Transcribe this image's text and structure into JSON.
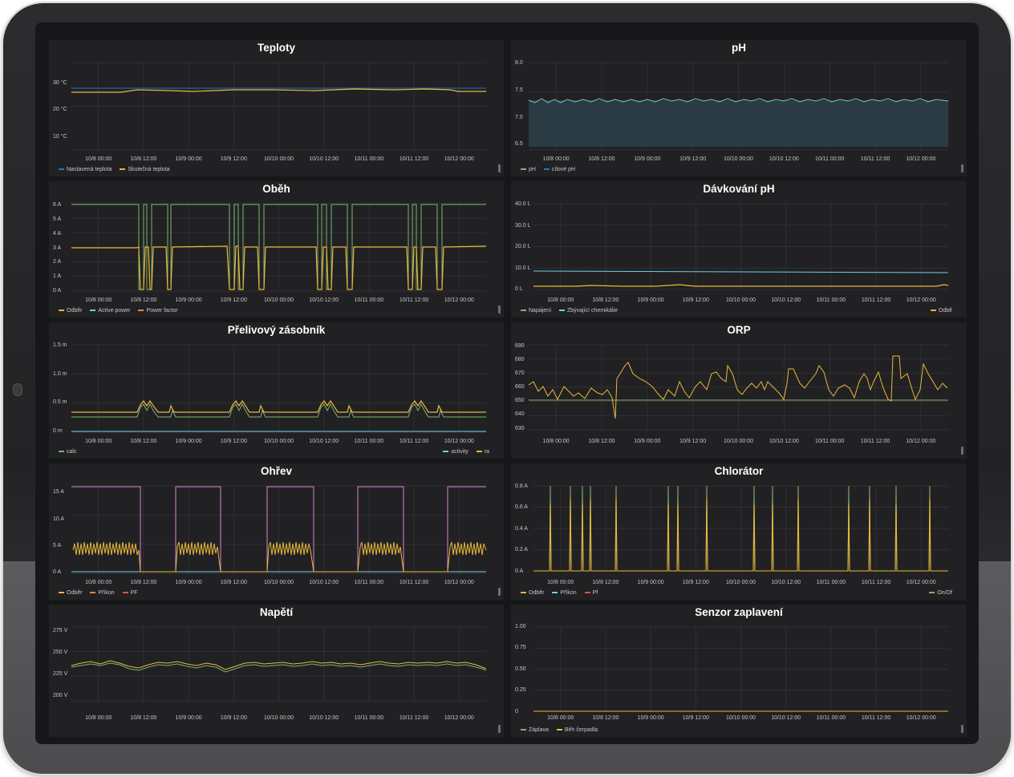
{
  "theme": {
    "grid": "#37373a",
    "line_green": "#7eb26d",
    "line_yellow": "#eab839",
    "line_blue": "#1f78c1",
    "line_cyan": "#6ed0e0",
    "line_pink": "#d683ce",
    "line_orange": "#ef843c",
    "line_red": "#e24d42",
    "line_teal": "#70c5c5"
  },
  "x_ticks": [
    "10/8 00:00",
    "10/8 12:00",
    "10/9 00:00",
    "10/9 12:00",
    "10/10 00:00",
    "10/10 12:00",
    "10/11 00:00",
    "10/11 12:00",
    "10/12 00:00"
  ],
  "panels": [
    {
      "title": "Teploty",
      "y_ticks": [
        "30 °C",
        "20 °C",
        "10 °C"
      ],
      "legend": [
        {
          "label": "Nastavená teplota",
          "color": "#1f78c1"
        },
        {
          "label": "Skutečná teplota",
          "color": "#eab839"
        }
      ],
      "legend_right": []
    },
    {
      "title": "pH",
      "y_ticks": [
        "8.0",
        "7.5",
        "7.0",
        "6.5"
      ],
      "legend": [
        {
          "label": "pH",
          "color": "#7eb26d"
        },
        {
          "label": "cílové pH",
          "color": "#1f78c1"
        }
      ],
      "legend_right": []
    },
    {
      "title": "Oběh",
      "y_ticks": [
        "6 A",
        "5 A",
        "4 A",
        "3 A",
        "2 A",
        "1 A",
        "0 A"
      ],
      "legend": [
        {
          "label": "Odběr",
          "color": "#eab839"
        },
        {
          "label": "Active power",
          "color": "#6ed0e0"
        },
        {
          "label": "Power factor",
          "color": "#ef843c"
        }
      ],
      "legend_right": []
    },
    {
      "title": "Dávkování pH",
      "y_ticks": [
        "40.0 L",
        "30.0 L",
        "20.0 L",
        "10.0 L",
        "0 L"
      ],
      "legend": [
        {
          "label": "Napájení",
          "color": "#7eb26d"
        },
        {
          "label": "Zbývající chemikálie",
          "color": "#6ed0e0"
        }
      ],
      "legend_right": [
        {
          "label": "Odbě",
          "color": "#eab839"
        }
      ]
    },
    {
      "title": "Přelivový zásobník",
      "y_ticks": [
        "1.5 m",
        "1.0 m",
        "0.5 m",
        "0 m"
      ],
      "legend": [
        {
          "label": "calc",
          "color": "#7eb26d"
        }
      ],
      "legend_right": [
        {
          "label": "activity",
          "color": "#6ed0e0"
        },
        {
          "label": "ra",
          "color": "#eab839"
        }
      ]
    },
    {
      "title": "ORP",
      "y_ticks": [
        "690",
        "680",
        "670",
        "660",
        "650",
        "640",
        "630"
      ],
      "legend": [],
      "legend_right": []
    },
    {
      "title": "Ohřev",
      "y_ticks": [
        "15 A",
        "10 A",
        "5 A",
        "0 A"
      ],
      "legend": [
        {
          "label": "Odběr",
          "color": "#eab839"
        },
        {
          "label": "Příkon",
          "color": "#ef843c"
        },
        {
          "label": "PF",
          "color": "#e24d42"
        }
      ],
      "legend_right": []
    },
    {
      "title": "Chlorátor",
      "y_ticks": [
        "0.8 A",
        "0.6 A",
        "0.4 A",
        "0.2 A",
        "0 A"
      ],
      "legend": [
        {
          "label": "Odběr",
          "color": "#eab839"
        },
        {
          "label": "Příkon",
          "color": "#6ed0e0"
        },
        {
          "label": "Pf",
          "color": "#e24d42"
        }
      ],
      "legend_right": [
        {
          "label": "On/Of",
          "color": "#7eb26d"
        }
      ]
    },
    {
      "title": "Napětí",
      "y_ticks": [
        "275 V",
        "250 V",
        "225 V",
        "200 V"
      ],
      "legend": [],
      "legend_right": []
    },
    {
      "title": "Senzor zaplavení",
      "y_ticks": [
        "1.00",
        "0.75",
        "0.50",
        "0.25",
        "0"
      ],
      "legend": [
        {
          "label": "Záplava",
          "color": "#7eb26d"
        },
        {
          "label": "Běh čerpadla",
          "color": "#eab839"
        }
      ],
      "legend_right": []
    }
  ]
}
